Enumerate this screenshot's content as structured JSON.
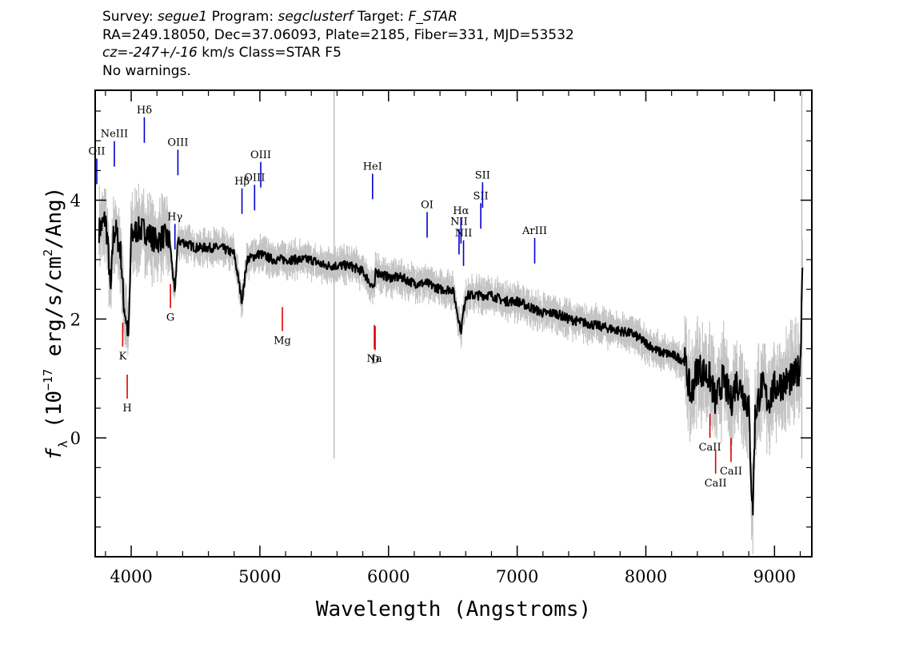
{
  "header": {
    "survey_label": "Survey:",
    "survey": "segue1",
    "program_label": "Program:",
    "program": "segclusterf",
    "target_label": "Target:",
    "target": "F_STAR",
    "coords_line": "RA=249.18050, Dec=37.06093, Plate=2185, Fiber=331, MJD=53532",
    "cz_prefix": "cz=",
    "cz_value": "-247+/-16",
    "cz_suffix": " km/s Class=STAR F5",
    "warnings": "No warnings."
  },
  "chart_data": {
    "type": "line",
    "xlabel": "Wavelength (Angstroms)",
    "ylabel_parts": {
      "f": "f",
      "sub": "λ",
      "pre": " (10",
      "exp1": "−17",
      "mid": " erg/s/cm",
      "exp2": "2",
      "post": "/Ang)"
    },
    "xlim": [
      3720,
      9290
    ],
    "ylim": [
      -2.0,
      5.85
    ],
    "x_ticks": [
      4000,
      5000,
      6000,
      7000,
      8000,
      9000
    ],
    "x_tick_labels": [
      "4000",
      "5000",
      "6000",
      "7000",
      "8000",
      "9000"
    ],
    "y_ticks": [
      0,
      2,
      4
    ],
    "y_tick_labels": [
      "0",
      "2",
      "4"
    ],
    "grid": false,
    "colors": {
      "flux": "#000000",
      "error_band": "#c4c4c4",
      "emission_lines": "#0000cc",
      "absorption_lines": "#dd0000",
      "vertical_lines": "#bbbbbb"
    },
    "series": [
      {
        "x": [
          3750,
          3780,
          3800,
          3820,
          3840,
          3860,
          3880,
          3900,
          3920,
          3940,
          3960,
          3980,
          4000,
          4050,
          4100,
          4150,
          4200,
          4250,
          4300,
          4340,
          4360,
          4400,
          4500,
          4600,
          4700,
          4800,
          4861,
          4900,
          5000,
          5100,
          5200,
          5300,
          5400,
          5500,
          5600,
          5700,
          5800,
          5890,
          5900,
          6000,
          6100,
          6200,
          6300,
          6400,
          6500,
          6563,
          6600,
          6700,
          6800,
          6900,
          7000,
          7100,
          7200,
          7300,
          7400,
          7500,
          7600,
          7700,
          7800,
          7900,
          8000,
          8100,
          8200,
          8300,
          8350,
          8400,
          8450,
          8500,
          8542,
          8600,
          8662,
          8700,
          8750,
          8800,
          8830,
          8850,
          8900,
          8950,
          9000,
          9050,
          9100,
          9150,
          9200,
          9220
        ],
        "y": [
          3.5,
          3.6,
          3.7,
          3.2,
          2.4,
          3.4,
          3.5,
          3.3,
          3.1,
          2.3,
          2.0,
          1.7,
          3.4,
          3.5,
          3.5,
          3.4,
          3.3,
          3.4,
          3.3,
          2.4,
          3.3,
          3.3,
          3.2,
          3.2,
          3.2,
          3.1,
          2.3,
          3.0,
          3.1,
          3.0,
          3.0,
          3.0,
          3.0,
          2.9,
          2.9,
          2.9,
          2.8,
          2.5,
          2.8,
          2.7,
          2.7,
          2.6,
          2.6,
          2.5,
          2.5,
          1.8,
          2.4,
          2.4,
          2.4,
          2.3,
          2.3,
          2.2,
          2.1,
          2.1,
          2.0,
          1.95,
          1.9,
          1.85,
          1.8,
          1.75,
          1.6,
          1.45,
          1.4,
          1.3,
          0.7,
          1.2,
          1.1,
          1.0,
          0.6,
          1.0,
          0.6,
          0.95,
          0.8,
          0.5,
          -1.3,
          0.4,
          0.9,
          0.6,
          0.85,
          0.9,
          0.95,
          1.0,
          1.2,
          3.3
        ]
      }
    ],
    "vertical_lines_x": [
      5577,
      9212
    ],
    "emission_lines": [
      {
        "label": "OII",
        "x": 3727
      },
      {
        "label": "NeIII",
        "x": 3869
      },
      {
        "label": "Hδ",
        "x": 4102
      },
      {
        "label": "Hγ",
        "x": 4340
      },
      {
        "label": "OIII",
        "x": 4363
      },
      {
        "label": "Hβ",
        "x": 4861
      },
      {
        "label": "OIII",
        "x": 4959
      },
      {
        "label": "OIII",
        "x": 5007
      },
      {
        "label": "HeI",
        "x": 5876
      },
      {
        "label": "OI",
        "x": 6300
      },
      {
        "label": "NII",
        "x": 6548
      },
      {
        "label": "Hα",
        "x": 6563
      },
      {
        "label": "NII",
        "x": 6583
      },
      {
        "label": "SII",
        "x": 6717
      },
      {
        "label": "SII",
        "x": 6731
      },
      {
        "label": "ArIII",
        "x": 7136
      }
    ],
    "absorption_lines": [
      {
        "label": "K",
        "x": 3934
      },
      {
        "label": "H",
        "x": 3969
      },
      {
        "label": "G",
        "x": 4305
      },
      {
        "label": "Mg",
        "x": 5175
      },
      {
        "label": "Na",
        "x": 5890
      },
      {
        "label": "D",
        "x": 5896
      },
      {
        "label": "CaII",
        "x": 8498
      },
      {
        "label": "CaII",
        "x": 8542
      },
      {
        "label": "CaII",
        "x": 8662
      }
    ]
  }
}
